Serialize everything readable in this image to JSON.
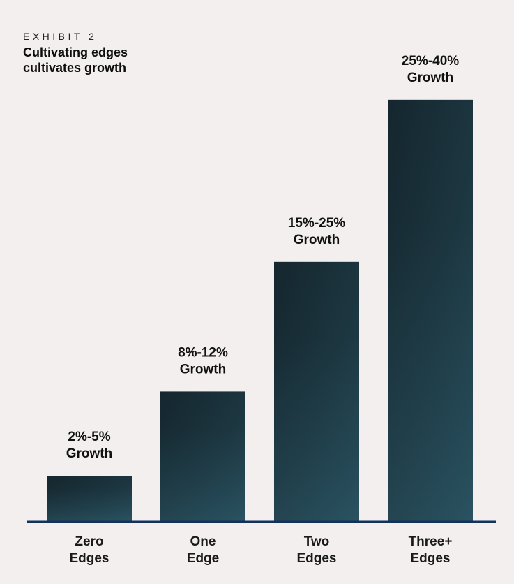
{
  "header": {
    "exhibit": "EXHIBIT 2",
    "title": "Cultivating edges\ncultivates growth"
  },
  "colors": {
    "background": "#f3efef",
    "bar": "#1a3039",
    "bar_highlight": "#2c5565",
    "baseline": "#12325c"
  },
  "chart_data": {
    "type": "bar",
    "categories": [
      "Zero\nEdges",
      "One\nEdge",
      "Two\nEdges",
      "Three+\nEdges"
    ],
    "category_lines": [
      [
        "Zero",
        "Edges"
      ],
      [
        "One",
        "Edge"
      ],
      [
        "Two",
        "Edges"
      ],
      [
        "Three+",
        "Edges"
      ]
    ],
    "value_labels": [
      [
        "2%-5%",
        "Growth"
      ],
      [
        "8%-12%",
        "Growth"
      ],
      [
        "15%-25%",
        "Growth"
      ],
      [
        "25%-40%",
        "Growth"
      ]
    ],
    "ranges": [
      [
        2,
        5
      ],
      [
        8,
        12
      ],
      [
        15,
        25
      ],
      [
        25,
        40
      ]
    ],
    "values": [
      3.5,
      10,
      20,
      32.5
    ],
    "ylim": [
      0,
      34
    ],
    "grid": false
  }
}
